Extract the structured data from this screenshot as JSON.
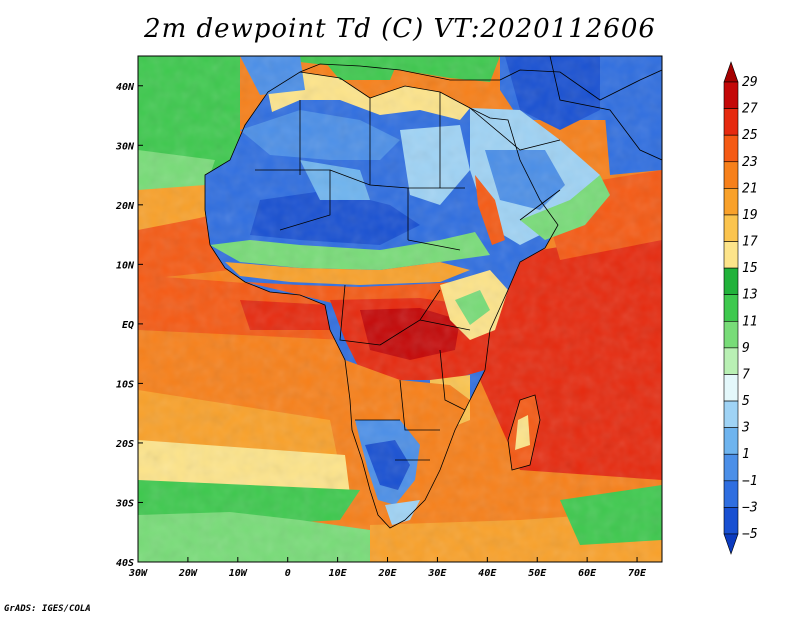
{
  "title": "2m dewpoint Td (C) VT:2020112606",
  "credit": "GrADS: IGES/COLA",
  "map": {
    "lon_range": [
      -30,
      75
    ],
    "lat_range": [
      -40,
      45
    ],
    "lat_ticks": [
      {
        "value": 40,
        "label": "40N"
      },
      {
        "value": 30,
        "label": "30N"
      },
      {
        "value": 20,
        "label": "20N"
      },
      {
        "value": 10,
        "label": "10N"
      },
      {
        "value": 0,
        "label": "EQ"
      },
      {
        "value": -10,
        "label": "10S"
      },
      {
        "value": -20,
        "label": "20S"
      },
      {
        "value": -30,
        "label": "30S"
      },
      {
        "value": -40,
        "label": "40S"
      }
    ],
    "lon_ticks": [
      {
        "value": -30,
        "label": "30W"
      },
      {
        "value": -20,
        "label": "20W"
      },
      {
        "value": -10,
        "label": "10W"
      },
      {
        "value": 0,
        "label": "0"
      },
      {
        "value": 10,
        "label": "10E"
      },
      {
        "value": 20,
        "label": "20E"
      },
      {
        "value": 30,
        "label": "30E"
      },
      {
        "value": 40,
        "label": "40E"
      },
      {
        "value": 50,
        "label": "50E"
      },
      {
        "value": 60,
        "label": "60E"
      },
      {
        "value": 70,
        "label": "70E"
      }
    ]
  },
  "colorbar": {
    "labels": [
      "29",
      "27",
      "25",
      "23",
      "21",
      "19",
      "17",
      "15",
      "13",
      "11",
      "9",
      "7",
      "5",
      "3",
      "1",
      "−1",
      "−3",
      "−5"
    ],
    "colors": [
      "#a50000",
      "#c40808",
      "#e62a0f",
      "#f55a14",
      "#f7801a",
      "#f9a12a",
      "#fbc44e",
      "#fde48a",
      "#21b23a",
      "#3ec94e",
      "#78dc78",
      "#b9f0b4",
      "#e4f8fb",
      "#9fd3f5",
      "#6eb4ef",
      "#4b8fe8",
      "#2f6ee0",
      "#1850d2",
      "#0b3bbf"
    ]
  }
}
